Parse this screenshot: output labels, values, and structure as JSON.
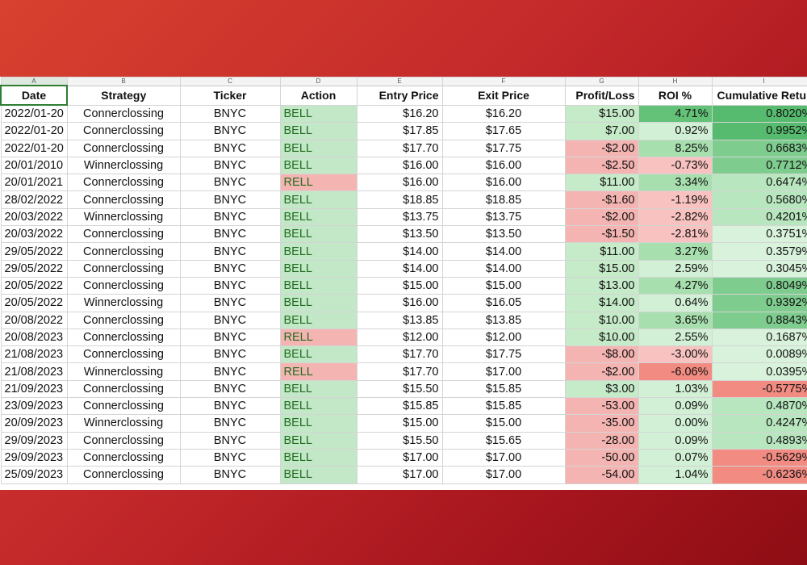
{
  "column_letters": [
    "A",
    "B",
    "C",
    "D",
    "E",
    "F",
    "G",
    "H",
    "I"
  ],
  "headers": {
    "date": "Date",
    "strategy": "Strategy",
    "ticker": "Ticker",
    "action": "Action",
    "entry_price": "Entry Price",
    "exit_price": "Exit Price",
    "profit_loss": "Profit/Loss",
    "roi": "ROI %",
    "cumulative_return": "Cumulative Retur"
  },
  "colors": {
    "background_gradient": [
      "#d8412f",
      "#8e0d14"
    ],
    "positive_fill": "#c6ebc9",
    "negative_fill": "#f4b5b2",
    "strong_positive_fill": "#57bb6f",
    "strong_negative_fill": "#f28b82",
    "selected_cell_border": "#2e7d32"
  },
  "rows": [
    {
      "date": "2022/01-20",
      "strategy": "Connerclossing",
      "ticker": "BNYC",
      "action": "BELL",
      "entry": "$16.20",
      "exit": "$16.20",
      "pl": "$15.00",
      "roi": "4.71%",
      "cum": "0.8020%",
      "action_tone": "buy",
      "pl_tone": "pos",
      "roi_tone": "strong",
      "cum_tone": "strong"
    },
    {
      "date": "2022/01-20",
      "strategy": "Connerclossing",
      "ticker": "BNYC",
      "action": "BELL",
      "entry": "$17.85",
      "exit": "$17.65",
      "pl": "$7.00",
      "roi": "0.92%",
      "cum": "0.9952%",
      "action_tone": "buy",
      "pl_tone": "pos",
      "roi_tone": "light",
      "cum_tone": "strong"
    },
    {
      "date": "2022/01-20",
      "strategy": "Connerclossing",
      "ticker": "BNYC",
      "action": "BELL",
      "entry": "$17.70",
      "exit": "$17.75",
      "pl": "-$2.00",
      "roi": "8.25%",
      "cum": "0.6683%",
      "action_tone": "buy",
      "pl_tone": "neg",
      "roi_tone": "mid",
      "cum_tone": "mid"
    },
    {
      "date": "20/01/2010",
      "strategy": "Winnerclossing",
      "ticker": "BNYC",
      "action": "BELL",
      "entry": "$16.00",
      "exit": "$16.00",
      "pl": "-$2.50",
      "roi": "-0.73%",
      "cum": "0.7712%",
      "action_tone": "buy",
      "pl_tone": "neg",
      "roi_tone": "neg",
      "cum_tone": "mid"
    },
    {
      "date": "20/01/2021",
      "strategy": "Connerclossing",
      "ticker": "BNYC",
      "action": "RELL",
      "entry": "$16.00",
      "exit": "$16.00",
      "pl": "$11.00",
      "roi": "3.34%",
      "cum": "0.6474%",
      "action_tone": "sell",
      "pl_tone": "pos",
      "roi_tone": "mid",
      "cum_tone": "light"
    },
    {
      "date": "28/02/2022",
      "strategy": "Connerclossing",
      "ticker": "BNYC",
      "action": "BELL",
      "entry": "$18.85",
      "exit": "$18.85",
      "pl": "-$1.60",
      "roi": "-1.19%",
      "cum": "0.5680%",
      "action_tone": "buy",
      "pl_tone": "neg",
      "roi_tone": "neg",
      "cum_tone": "light"
    },
    {
      "date": "20/03/2022",
      "strategy": "Winnerclossing",
      "ticker": "BNYC",
      "action": "BELL",
      "entry": "$13.75",
      "exit": "$13.75",
      "pl": "-$2.00",
      "roi": "-2.82%",
      "cum": "0.4201%",
      "action_tone": "buy",
      "pl_tone": "neg",
      "roi_tone": "neg",
      "cum_tone": "light"
    },
    {
      "date": "20/03/2022",
      "strategy": "Connerclossing",
      "ticker": "BNYC",
      "action": "BELL",
      "entry": "$13.50",
      "exit": "$13.50",
      "pl": "-$1.50",
      "roi": "-2.81%",
      "cum": "0.3751%",
      "action_tone": "buy",
      "pl_tone": "neg",
      "roi_tone": "neg",
      "cum_tone": "pale"
    },
    {
      "date": "29/05/2022",
      "strategy": "Connerclossing",
      "ticker": "BNYC",
      "action": "BELL",
      "entry": "$14.00",
      "exit": "$14.00",
      "pl": "$11.00",
      "roi": "3.27%",
      "cum": "0.3579%",
      "action_tone": "buy",
      "pl_tone": "pos",
      "roi_tone": "mid",
      "cum_tone": "pale"
    },
    {
      "date": "29/05/2022",
      "strategy": "Connerclossing",
      "ticker": "BNYC",
      "action": "BELL",
      "entry": "$14.00",
      "exit": "$14.00",
      "pl": "$15.00",
      "roi": "2.59%",
      "cum": "0.3045%",
      "action_tone": "buy",
      "pl_tone": "pos",
      "roi_tone": "light",
      "cum_tone": "pale"
    },
    {
      "date": "20/05/2022",
      "strategy": "Connerclossing",
      "ticker": "BNYC",
      "action": "BELL",
      "entry": "$15.00",
      "exit": "$15.00",
      "pl": "$13.00",
      "roi": "4.27%",
      "cum": "0.8049%",
      "action_tone": "buy",
      "pl_tone": "pos",
      "roi_tone": "mid",
      "cum_tone": "mid"
    },
    {
      "date": "20/05/2022",
      "strategy": "Winnerclossing",
      "ticker": "BNYC",
      "action": "BELL",
      "entry": "$16.00",
      "exit": "$16.05",
      "pl": "$14.00",
      "roi": "0.64%",
      "cum": "0.9392%",
      "action_tone": "buy",
      "pl_tone": "pos",
      "roi_tone": "light",
      "cum_tone": "mid"
    },
    {
      "date": "20/08/2022",
      "strategy": "Connerclossing",
      "ticker": "BNYC",
      "action": "BELL",
      "entry": "$13.85",
      "exit": "$13.85",
      "pl": "$10.00",
      "roi": "3.65%",
      "cum": "0.8843%",
      "action_tone": "buy",
      "pl_tone": "pos",
      "roi_tone": "mid",
      "cum_tone": "mid"
    },
    {
      "date": "20/08/2023",
      "strategy": "Connerclossing",
      "ticker": "BNYC",
      "action": "RELL",
      "entry": "$12.00",
      "exit": "$12.00",
      "pl": "$10.00",
      "roi": "2.55%",
      "cum": "0.1687%",
      "action_tone": "sell",
      "pl_tone": "pos",
      "roi_tone": "light",
      "cum_tone": "pale"
    },
    {
      "date": "21/08/2023",
      "strategy": "Connerclossing",
      "ticker": "BNYC",
      "action": "BELL",
      "entry": "$17.70",
      "exit": "$17.75",
      "pl": "-$8.00",
      "roi": "-3.00%",
      "cum": "0.0089%",
      "action_tone": "buy",
      "pl_tone": "neg",
      "roi_tone": "neg",
      "cum_tone": "pale"
    },
    {
      "date": "21/08/2023",
      "strategy": "Winnerclossing",
      "ticker": "BNYC",
      "action": "RELL",
      "entry": "$17.70",
      "exit": "$17.00",
      "pl": "-$2.00",
      "roi": "-6.06%",
      "cum": "0.0395%",
      "action_tone": "sell",
      "pl_tone": "neg",
      "roi_tone": "negstrong",
      "cum_tone": "pale"
    },
    {
      "date": "21/09/2023",
      "strategy": "Connerclossing",
      "ticker": "BNYC",
      "action": "BELL",
      "entry": "$15.50",
      "exit": "$15.85",
      "pl": "$3.00",
      "roi": "1.03%",
      "cum": "-0.5775%",
      "action_tone": "buy",
      "pl_tone": "pos",
      "roi_tone": "light",
      "cum_tone": "neg"
    },
    {
      "date": "23/09/2023",
      "strategy": "Connerclossing",
      "ticker": "BNYC",
      "action": "BELL",
      "entry": "$15.85",
      "exit": "$15.85",
      "pl": "-53.00",
      "roi": "0.09%",
      "cum": "0.4870%",
      "action_tone": "buy",
      "pl_tone": "neg",
      "roi_tone": "light",
      "cum_tone": "light"
    },
    {
      "date": "20/09/2023",
      "strategy": "Winnerclossing",
      "ticker": "BNYC",
      "action": "BELL",
      "entry": "$15.00",
      "exit": "$15.00",
      "pl": "-35.00",
      "roi": "0.00%",
      "cum": "0.4247%",
      "action_tone": "buy",
      "pl_tone": "neg",
      "roi_tone": "light",
      "cum_tone": "light"
    },
    {
      "date": "29/09/2023",
      "strategy": "Connerclossing",
      "ticker": "BNYC",
      "action": "BELL",
      "entry": "$15.50",
      "exit": "$15.65",
      "pl": "-28.00",
      "roi": "0.09%",
      "cum": "0.4893%",
      "action_tone": "buy",
      "pl_tone": "neg",
      "roi_tone": "light",
      "cum_tone": "light"
    },
    {
      "date": "29/09/2023",
      "strategy": "Connerclossing",
      "ticker": "BNYC",
      "action": "BELL",
      "entry": "$17.00",
      "exit": "$17.00",
      "pl": "-50.00",
      "roi": "0.07%",
      "cum": "-0.5629%",
      "action_tone": "buy",
      "pl_tone": "neg",
      "roi_tone": "light",
      "cum_tone": "neg"
    },
    {
      "date": "25/09/2023",
      "strategy": "Connerclossing",
      "ticker": "BNYC",
      "action": "BELL",
      "entry": "$17.00",
      "exit": "$17.00",
      "pl": "-54.00",
      "roi": "1.04%",
      "cum": "-0.6236%",
      "action_tone": "buy",
      "pl_tone": "neg",
      "roi_tone": "light",
      "cum_tone": "neg"
    }
  ]
}
